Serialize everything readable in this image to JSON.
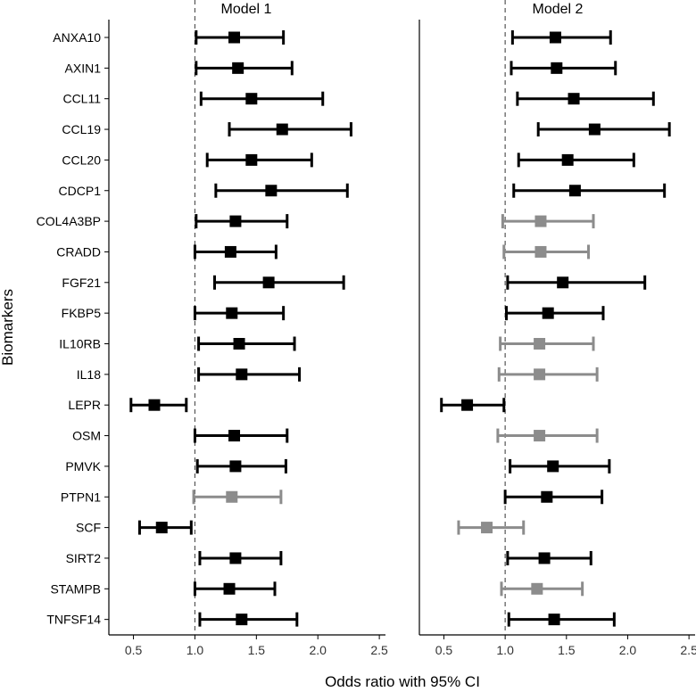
{
  "chart_data": {
    "type": "forest",
    "ylabel": "Biomarkers",
    "xlabel": "Odds ratio with 95% CI",
    "xlim": [
      0.3,
      2.55
    ],
    "x_ticks": [
      0.5,
      1.0,
      1.5,
      2.0,
      2.5
    ],
    "x_tick_labels": [
      "0.5",
      "1.0",
      "1.5",
      "2.0",
      "2.5"
    ],
    "reference_line": 1.0,
    "biomarkers": [
      "ANXA10",
      "AXIN1",
      "CCL11",
      "CCL19",
      "CCL20",
      "CDCP1",
      "COL4A3BP",
      "CRADD",
      "FGF21",
      "FKBP5",
      "IL10RB",
      "IL18",
      "LEPR",
      "OSM",
      "PMVK",
      "PTPN1",
      "SCF",
      "SIRT2",
      "STAMPB",
      "TNFSF14"
    ],
    "colors": {
      "significant": "#000000",
      "not_significant": "#8c8c8c",
      "reference": "#555555"
    },
    "panels": [
      {
        "title": "Model 1",
        "estimates": [
          {
            "or": 1.32,
            "lo": 1.01,
            "hi": 1.72,
            "significant": true
          },
          {
            "or": 1.35,
            "lo": 1.01,
            "hi": 1.79,
            "significant": true
          },
          {
            "or": 1.46,
            "lo": 1.05,
            "hi": 2.04,
            "significant": true
          },
          {
            "or": 1.71,
            "lo": 1.28,
            "hi": 2.27,
            "significant": true
          },
          {
            "or": 1.46,
            "lo": 1.1,
            "hi": 1.95,
            "significant": true
          },
          {
            "or": 1.62,
            "lo": 1.17,
            "hi": 2.24,
            "significant": true
          },
          {
            "or": 1.33,
            "lo": 1.01,
            "hi": 1.75,
            "significant": true
          },
          {
            "or": 1.29,
            "lo": 1.0,
            "hi": 1.66,
            "significant": true
          },
          {
            "or": 1.6,
            "lo": 1.16,
            "hi": 2.21,
            "significant": true
          },
          {
            "or": 1.3,
            "lo": 1.0,
            "hi": 1.72,
            "significant": true
          },
          {
            "or": 1.36,
            "lo": 1.03,
            "hi": 1.81,
            "significant": true
          },
          {
            "or": 1.38,
            "lo": 1.03,
            "hi": 1.85,
            "significant": true
          },
          {
            "or": 0.67,
            "lo": 0.48,
            "hi": 0.93,
            "significant": true
          },
          {
            "or": 1.32,
            "lo": 1.0,
            "hi": 1.75,
            "significant": true
          },
          {
            "or": 1.33,
            "lo": 1.02,
            "hi": 1.74,
            "significant": true
          },
          {
            "or": 1.3,
            "lo": 0.99,
            "hi": 1.7,
            "significant": false
          },
          {
            "or": 0.73,
            "lo": 0.55,
            "hi": 0.97,
            "significant": true
          },
          {
            "or": 1.33,
            "lo": 1.04,
            "hi": 1.7,
            "significant": true
          },
          {
            "or": 1.28,
            "lo": 1.0,
            "hi": 1.65,
            "significant": true
          },
          {
            "or": 1.38,
            "lo": 1.04,
            "hi": 1.83,
            "significant": true
          }
        ]
      },
      {
        "title": "Model 2",
        "estimates": [
          {
            "or": 1.41,
            "lo": 1.06,
            "hi": 1.86,
            "significant": true
          },
          {
            "or": 1.42,
            "lo": 1.05,
            "hi": 1.9,
            "significant": true
          },
          {
            "or": 1.56,
            "lo": 1.1,
            "hi": 2.21,
            "significant": true
          },
          {
            "or": 1.73,
            "lo": 1.27,
            "hi": 2.34,
            "significant": true
          },
          {
            "or": 1.51,
            "lo": 1.11,
            "hi": 2.05,
            "significant": true
          },
          {
            "or": 1.57,
            "lo": 1.07,
            "hi": 2.3,
            "significant": true
          },
          {
            "or": 1.29,
            "lo": 0.98,
            "hi": 1.72,
            "significant": false
          },
          {
            "or": 1.29,
            "lo": 0.99,
            "hi": 1.68,
            "significant": false
          },
          {
            "or": 1.47,
            "lo": 1.02,
            "hi": 2.14,
            "significant": true
          },
          {
            "or": 1.35,
            "lo": 1.01,
            "hi": 1.8,
            "significant": true
          },
          {
            "or": 1.28,
            "lo": 0.96,
            "hi": 1.72,
            "significant": false
          },
          {
            "or": 1.28,
            "lo": 0.95,
            "hi": 1.75,
            "significant": false
          },
          {
            "or": 0.69,
            "lo": 0.48,
            "hi": 0.99,
            "significant": true
          },
          {
            "or": 1.28,
            "lo": 0.94,
            "hi": 1.75,
            "significant": false
          },
          {
            "or": 1.39,
            "lo": 1.04,
            "hi": 1.85,
            "significant": true
          },
          {
            "or": 1.34,
            "lo": 1.0,
            "hi": 1.79,
            "significant": true
          },
          {
            "or": 0.85,
            "lo": 0.62,
            "hi": 1.15,
            "significant": false
          },
          {
            "or": 1.32,
            "lo": 1.02,
            "hi": 1.7,
            "significant": true
          },
          {
            "or": 1.26,
            "lo": 0.97,
            "hi": 1.63,
            "significant": false
          },
          {
            "or": 1.4,
            "lo": 1.03,
            "hi": 1.89,
            "significant": true
          }
        ]
      }
    ]
  }
}
